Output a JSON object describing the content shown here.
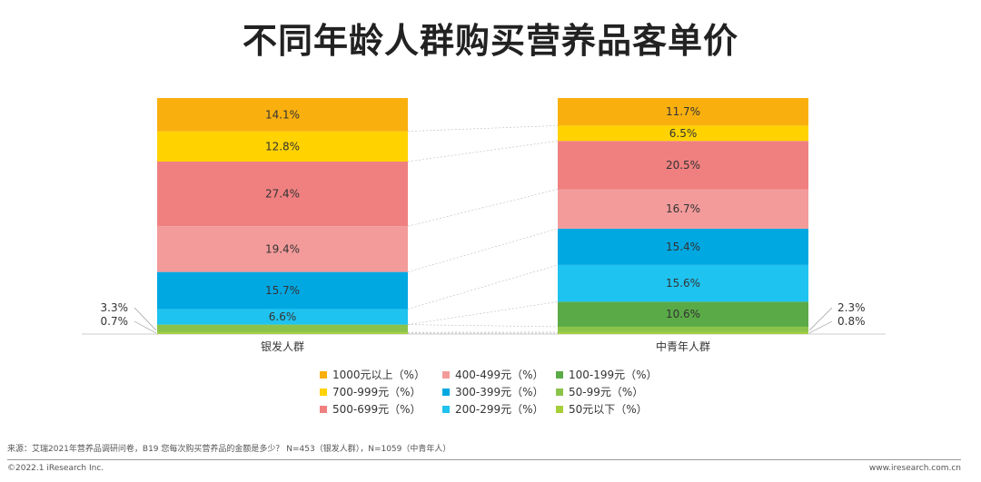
{
  "title": "不同年龄人群购买营养品客单价",
  "chart_data": {
    "type": "bar",
    "stacked": true,
    "normalized": true,
    "categories": [
      "银发人群",
      "中青年人群"
    ],
    "series": [
      {
        "name": "50元以下（%）",
        "color": "#a6ce39",
        "values": [
          0.7,
          0.8
        ],
        "labels": [
          "0.7%",
          "0.8%"
        ]
      },
      {
        "name": "50-99元（%）",
        "color": "#8bc34a",
        "values": [
          3.3,
          2.3
        ],
        "labels": [
          "3.3%",
          "2.3%"
        ]
      },
      {
        "name": "100-199元（%）",
        "color": "#5aab47",
        "values": [
          0.0,
          10.6
        ],
        "labels": [
          "",
          "10.6%"
        ]
      },
      {
        "name": "200-299元（%）",
        "color": "#1fc3ef",
        "values": [
          6.6,
          15.6
        ],
        "labels": [
          "6.6%",
          "15.6%"
        ]
      },
      {
        "name": "300-399元（%）",
        "color": "#00a8e2",
        "values": [
          15.7,
          15.4
        ],
        "labels": [
          "15.7%",
          "15.4%"
        ]
      },
      {
        "name": "400-499元（%）",
        "color": "#f39b9b",
        "values": [
          19.4,
          16.7
        ],
        "labels": [
          "19.4%",
          "16.7%"
        ]
      },
      {
        "name": "500-699元（%）",
        "color": "#f08080",
        "values": [
          27.4,
          20.5
        ],
        "labels": [
          "27.4%",
          "20.5%"
        ]
      },
      {
        "name": "700-999元（%）",
        "color": "#ffd200",
        "values": [
          12.8,
          6.5
        ],
        "labels": [
          "12.8%",
          "6.5%"
        ]
      },
      {
        "name": "1000元以上（%）",
        "color": "#f9b00f",
        "values": [
          14.1,
          11.7
        ],
        "labels": [
          "14.1%",
          "11.7%"
        ]
      }
    ],
    "outside_labels": {
      "left": [
        "3.3%",
        "0.7%"
      ],
      "right": [
        "2.3%",
        "0.8%"
      ]
    },
    "legend": {
      "columns": [
        [
          "1000元以上（%）",
          "700-999元（%）",
          "500-699元（%）"
        ],
        [
          "400-499元（%）",
          "300-399元（%）",
          "200-299元（%）"
        ],
        [
          "100-199元（%）",
          "50-99元（%）",
          "50元以下（%）"
        ]
      ],
      "position": "bottom"
    }
  },
  "footer": {
    "source": "来源：艾瑞2021年营养品调研问卷，B19 您每次购买营养品的金额是多少？ N=453（银发人群），N=1059（中青年人）",
    "copyright": "©2022.1 iResearch Inc.",
    "website": "www.iresearch.com.cn"
  }
}
